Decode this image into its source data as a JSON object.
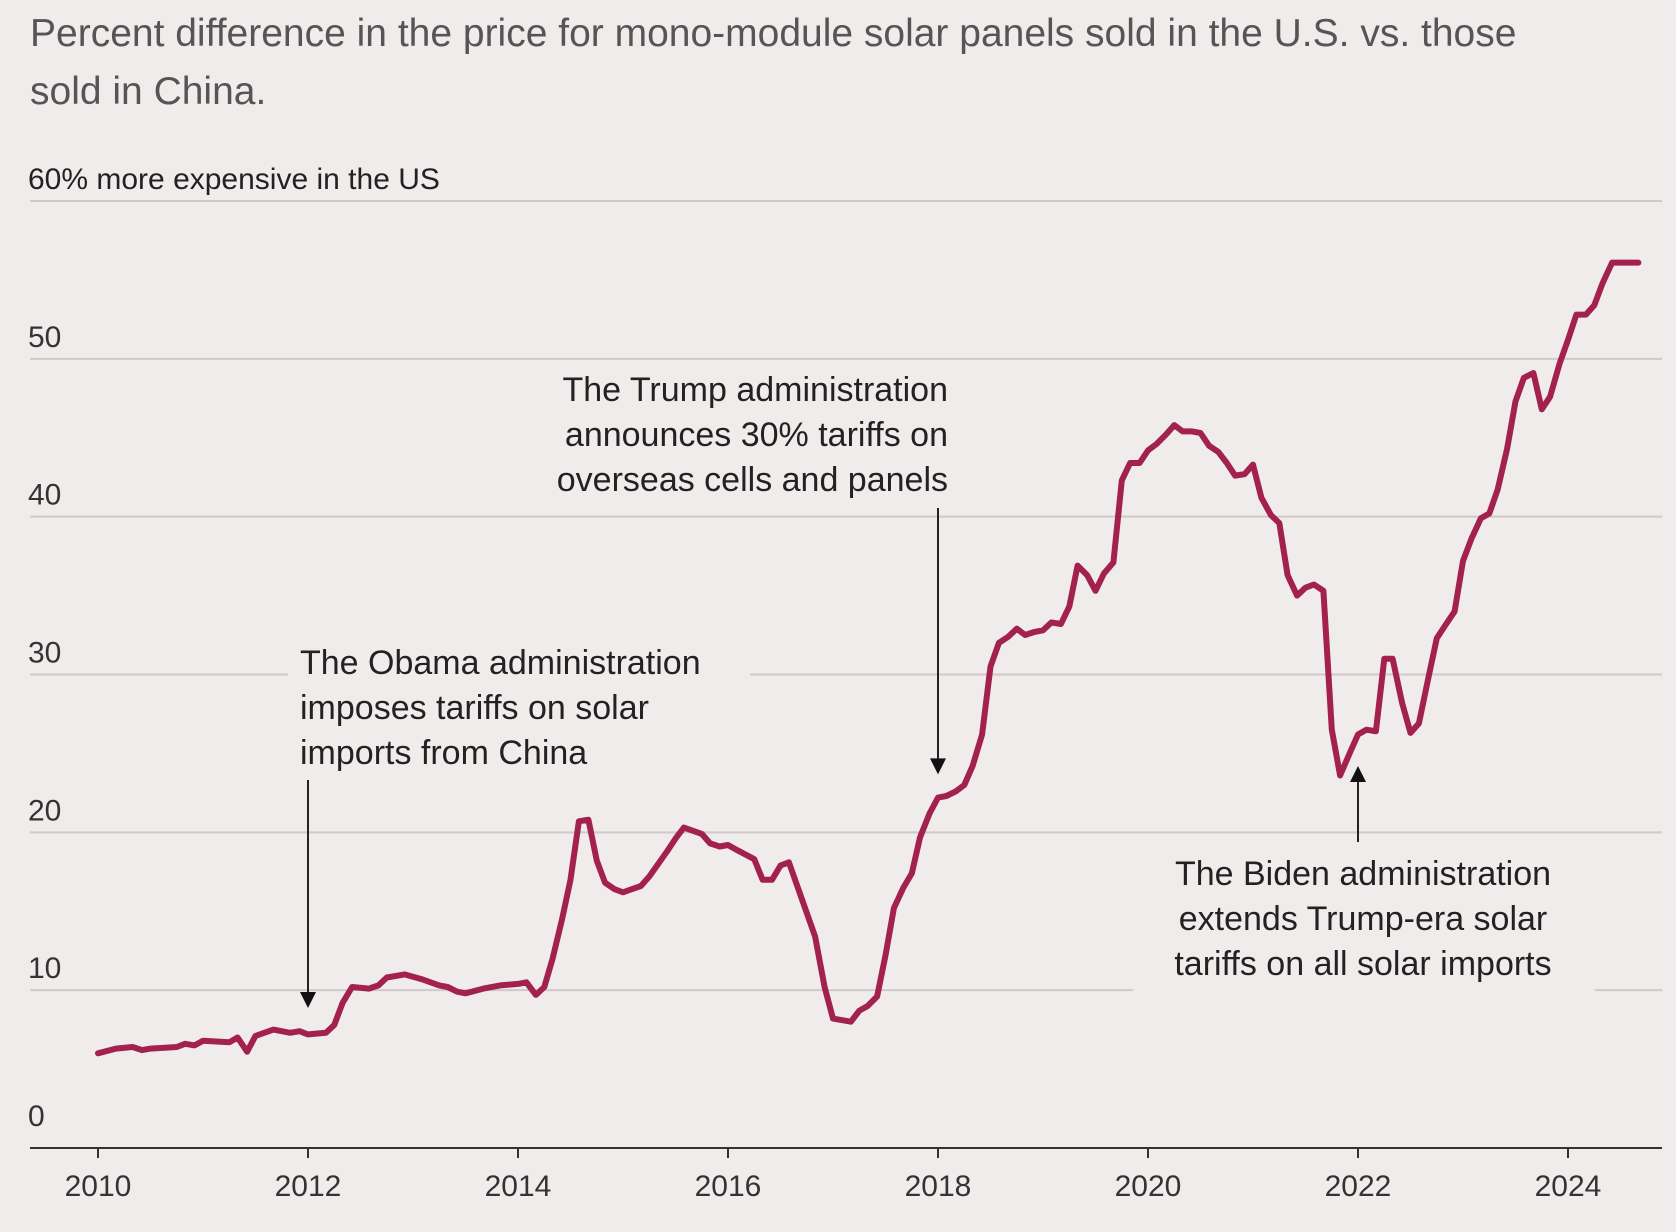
{
  "colors": {
    "background": "#f1ecec",
    "series": "#a3214e",
    "grid": "#cfc9c9"
  },
  "chart_data": {
    "type": "line",
    "title_lines": [
      "Percent difference in the price for mono-module solar panels sold in the U.S. vs. those",
      "sold in China."
    ],
    "ylabel": "",
    "xlabel": "",
    "top_tick_label": "60% more expensive in the US",
    "y_tick_labels": [
      "50",
      "40",
      "30",
      "20",
      "10",
      "0"
    ],
    "y_ticks": [
      50,
      40,
      30,
      20,
      10,
      0
    ],
    "ylim": [
      0,
      60
    ],
    "xlim": [
      2010,
      2024.75
    ],
    "x_ticks": [
      2010,
      2012,
      2014,
      2016,
      2018,
      2020,
      2022,
      2024
    ],
    "x_tick_labels": [
      "2010",
      "2012",
      "2014",
      "2016",
      "2018",
      "2020",
      "2022",
      "2024"
    ],
    "grid": true,
    "series": [
      {
        "color": "#a3214e",
        "points": [
          [
            2010.0,
            6.0
          ],
          [
            2010.17,
            6.3
          ],
          [
            2010.33,
            6.4
          ],
          [
            2010.42,
            6.2
          ],
          [
            2010.5,
            6.3
          ],
          [
            2010.75,
            6.4
          ],
          [
            2010.83,
            6.6
          ],
          [
            2010.92,
            6.5
          ],
          [
            2011.0,
            6.8
          ],
          [
            2011.25,
            6.7
          ],
          [
            2011.33,
            7.0
          ],
          [
            2011.42,
            6.1
          ],
          [
            2011.5,
            7.1
          ],
          [
            2011.67,
            7.5
          ],
          [
            2011.83,
            7.3
          ],
          [
            2011.92,
            7.4
          ],
          [
            2012.0,
            7.2
          ],
          [
            2012.17,
            7.3
          ],
          [
            2012.25,
            7.8
          ],
          [
            2012.33,
            9.2
          ],
          [
            2012.42,
            10.2
          ],
          [
            2012.58,
            10.1
          ],
          [
            2012.67,
            10.3
          ],
          [
            2012.75,
            10.8
          ],
          [
            2012.92,
            11.0
          ],
          [
            2013.08,
            10.7
          ],
          [
            2013.25,
            10.3
          ],
          [
            2013.33,
            10.2
          ],
          [
            2013.42,
            9.9
          ],
          [
            2013.5,
            9.8
          ],
          [
            2013.67,
            10.1
          ],
          [
            2013.83,
            10.3
          ],
          [
            2014.0,
            10.4
          ],
          [
            2014.08,
            10.5
          ],
          [
            2014.17,
            9.7
          ],
          [
            2014.25,
            10.2
          ],
          [
            2014.33,
            12.0
          ],
          [
            2014.42,
            14.5
          ],
          [
            2014.5,
            17.0
          ],
          [
            2014.58,
            20.7
          ],
          [
            2014.67,
            20.8
          ],
          [
            2014.75,
            18.2
          ],
          [
            2014.83,
            16.8
          ],
          [
            2014.92,
            16.4
          ],
          [
            2015.0,
            16.2
          ],
          [
            2015.17,
            16.6
          ],
          [
            2015.25,
            17.2
          ],
          [
            2015.42,
            18.8
          ],
          [
            2015.5,
            19.6
          ],
          [
            2015.58,
            20.3
          ],
          [
            2015.75,
            19.9
          ],
          [
            2015.83,
            19.3
          ],
          [
            2015.92,
            19.1
          ],
          [
            2016.0,
            19.2
          ],
          [
            2016.08,
            18.9
          ],
          [
            2016.25,
            18.3
          ],
          [
            2016.33,
            17.0
          ],
          [
            2016.42,
            17.0
          ],
          [
            2016.5,
            17.9
          ],
          [
            2016.58,
            18.1
          ],
          [
            2016.67,
            16.4
          ],
          [
            2016.83,
            13.4
          ],
          [
            2016.92,
            10.2
          ],
          [
            2017.0,
            8.2
          ],
          [
            2017.17,
            8.0
          ],
          [
            2017.25,
            8.7
          ],
          [
            2017.33,
            9.0
          ],
          [
            2017.42,
            9.6
          ],
          [
            2017.5,
            12.2
          ],
          [
            2017.58,
            15.2
          ],
          [
            2017.67,
            16.5
          ],
          [
            2017.75,
            17.4
          ],
          [
            2017.83,
            19.7
          ],
          [
            2017.92,
            21.2
          ],
          [
            2018.0,
            22.2
          ],
          [
            2018.08,
            22.3
          ],
          [
            2018.17,
            22.6
          ],
          [
            2018.25,
            23.0
          ],
          [
            2018.33,
            24.2
          ],
          [
            2018.42,
            26.2
          ],
          [
            2018.5,
            30.5
          ],
          [
            2018.58,
            32.0
          ],
          [
            2018.67,
            32.4
          ],
          [
            2018.75,
            32.9
          ],
          [
            2018.83,
            32.5
          ],
          [
            2018.92,
            32.7
          ],
          [
            2019.0,
            32.8
          ],
          [
            2019.08,
            33.3
          ],
          [
            2019.17,
            33.2
          ],
          [
            2019.25,
            34.3
          ],
          [
            2019.33,
            36.9
          ],
          [
            2019.42,
            36.3
          ],
          [
            2019.5,
            35.3
          ],
          [
            2019.58,
            36.4
          ],
          [
            2019.67,
            37.1
          ],
          [
            2019.75,
            42.3
          ],
          [
            2019.83,
            43.4
          ],
          [
            2019.92,
            43.4
          ],
          [
            2020.0,
            44.2
          ],
          [
            2020.08,
            44.6
          ],
          [
            2020.17,
            45.2
          ],
          [
            2020.25,
            45.8
          ],
          [
            2020.33,
            45.4
          ],
          [
            2020.42,
            45.4
          ],
          [
            2020.5,
            45.3
          ],
          [
            2020.58,
            44.5
          ],
          [
            2020.67,
            44.1
          ],
          [
            2020.75,
            43.4
          ],
          [
            2020.83,
            42.6
          ],
          [
            2020.92,
            42.7
          ],
          [
            2021.0,
            43.3
          ],
          [
            2021.08,
            41.2
          ],
          [
            2021.17,
            40.1
          ],
          [
            2021.25,
            39.6
          ],
          [
            2021.33,
            36.3
          ],
          [
            2021.42,
            35.0
          ],
          [
            2021.5,
            35.5
          ],
          [
            2021.58,
            35.7
          ],
          [
            2021.67,
            35.3
          ],
          [
            2021.75,
            26.5
          ],
          [
            2021.83,
            23.6
          ],
          [
            2021.92,
            25.0
          ],
          [
            2022.0,
            26.2
          ],
          [
            2022.08,
            26.5
          ],
          [
            2022.17,
            26.4
          ],
          [
            2022.25,
            31.0
          ],
          [
            2022.33,
            31.0
          ],
          [
            2022.42,
            28.2
          ],
          [
            2022.5,
            26.3
          ],
          [
            2022.58,
            26.9
          ],
          [
            2022.67,
            29.8
          ],
          [
            2022.75,
            32.3
          ],
          [
            2022.83,
            33.1
          ],
          [
            2022.92,
            34.0
          ],
          [
            2023.0,
            37.2
          ],
          [
            2023.08,
            38.6
          ],
          [
            2023.17,
            39.9
          ],
          [
            2023.25,
            40.2
          ],
          [
            2023.33,
            41.7
          ],
          [
            2023.42,
            44.3
          ],
          [
            2023.5,
            47.3
          ],
          [
            2023.58,
            48.8
          ],
          [
            2023.67,
            49.1
          ],
          [
            2023.75,
            46.8
          ],
          [
            2023.83,
            47.6
          ],
          [
            2023.92,
            49.7
          ],
          [
            2024.0,
            51.2
          ],
          [
            2024.08,
            52.8
          ],
          [
            2024.17,
            52.8
          ],
          [
            2024.25,
            53.4
          ],
          [
            2024.33,
            54.8
          ],
          [
            2024.42,
            56.1
          ],
          [
            2024.5,
            56.1
          ],
          [
            2024.67,
            56.1
          ]
        ]
      }
    ],
    "annotations": [
      {
        "id": "obama",
        "lines": [
          "The Obama administration",
          "imposes tariffs on solar",
          "imports from China"
        ],
        "x": 2012.0,
        "arrow_to": 9.0,
        "align": "start"
      },
      {
        "id": "trump",
        "lines": [
          "The Trump administration",
          "announces 30% tariffs on",
          "overseas cells and panels"
        ],
        "x": 2018.0,
        "arrow_to": 23.8,
        "align": "end"
      },
      {
        "id": "biden",
        "lines": [
          "The Biden administration",
          "extends Trump-era solar",
          "tariffs on all solar imports"
        ],
        "x": 2022.0,
        "arrow_to": 24.2,
        "align": "middle"
      }
    ]
  }
}
